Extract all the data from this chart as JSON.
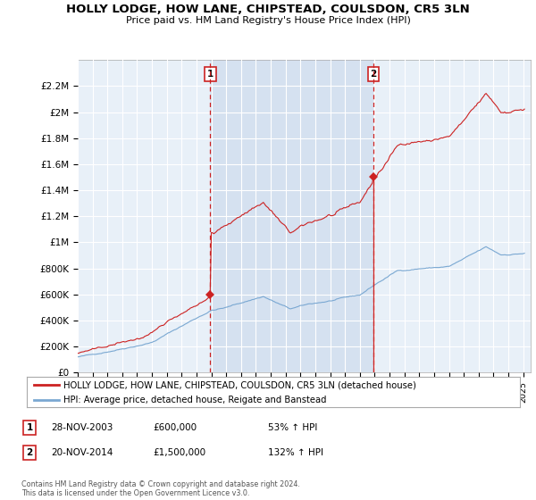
{
  "title": "HOLLY LODGE, HOW LANE, CHIPSTEAD, COULSDON, CR5 3LN",
  "subtitle": "Price paid vs. HM Land Registry's House Price Index (HPI)",
  "hpi_color": "#7aa8d2",
  "property_color": "#cc2222",
  "dashed_line_color": "#cc2222",
  "highlight_color": "#ddeeff",
  "plot_bg_color": "#e8f0f8",
  "ylim": [
    0,
    2400000
  ],
  "yticks": [
    0,
    200000,
    400000,
    600000,
    800000,
    1000000,
    1200000,
    1400000,
    1600000,
    1800000,
    2000000,
    2200000
  ],
  "ytick_labels": [
    "£0",
    "£200K",
    "£400K",
    "£600K",
    "£800K",
    "£1M",
    "£1.2M",
    "£1.4M",
    "£1.6M",
    "£1.8M",
    "£2M",
    "£2.2M"
  ],
  "sale1_date": 2003.92,
  "sale1_price": 600000,
  "sale1_label": "1",
  "sale2_date": 2014.92,
  "sale2_price": 1500000,
  "sale2_label": "2",
  "legend_property": "HOLLY LODGE, HOW LANE, CHIPSTEAD, COULSDON, CR5 3LN (detached house)",
  "legend_hpi": "HPI: Average price, detached house, Reigate and Banstead",
  "table_row1": [
    "1",
    "28-NOV-2003",
    "£600,000",
    "53% ↑ HPI"
  ],
  "table_row2": [
    "2",
    "20-NOV-2014",
    "£1,500,000",
    "132% ↑ HPI"
  ],
  "footnote": "Contains HM Land Registry data © Crown copyright and database right 2024.\nThis data is licensed under the Open Government Licence v3.0.",
  "xlim_start": 1995,
  "xlim_end": 2025.5
}
